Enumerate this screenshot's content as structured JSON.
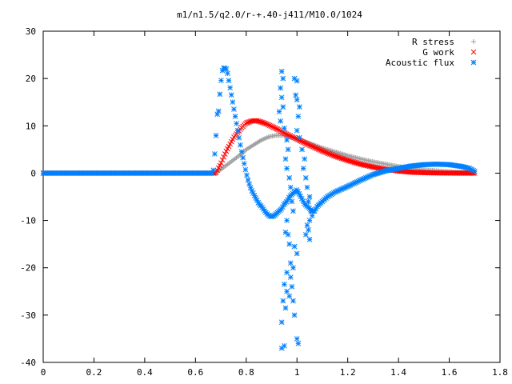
{
  "chart_data": {
    "type": "scatter",
    "title": "m1/n1.5/q2.0/r-+.40-j411/M10.0/1024",
    "xlabel": "",
    "ylabel": "",
    "xlim": [
      0,
      1.8
    ],
    "ylim": [
      -40,
      30
    ],
    "grid": false,
    "legend_position": "top-right",
    "x_ticks": [
      "0",
      "0.2",
      "0.4",
      "0.6",
      "0.8",
      "1",
      "1.2",
      "1.4",
      "1.6",
      "1.8"
    ],
    "y_ticks": [
      "30",
      "20",
      "10",
      "0",
      "-10",
      "-20",
      "-30",
      "-40"
    ],
    "series": [
      {
        "name": "R stress",
        "marker": "+",
        "color": "#a0a0a0",
        "points": [
          [
            0,
            0
          ],
          [
            0.68,
            0
          ],
          [
            0.7,
            0.8
          ],
          [
            0.72,
            1.6
          ],
          [
            0.75,
            2.8
          ],
          [
            0.78,
            4.0
          ],
          [
            0.8,
            5.0
          ],
          [
            0.83,
            6.0
          ],
          [
            0.86,
            7.0
          ],
          [
            0.89,
            7.7
          ],
          [
            0.92,
            8.0
          ],
          [
            0.95,
            8.0
          ],
          [
            0.98,
            7.6
          ],
          [
            1.0,
            7.2
          ],
          [
            1.05,
            6.3
          ],
          [
            1.1,
            5.3
          ],
          [
            1.15,
            4.5
          ],
          [
            1.2,
            3.7
          ],
          [
            1.25,
            3.0
          ],
          [
            1.3,
            2.4
          ],
          [
            1.35,
            1.9
          ],
          [
            1.4,
            1.4
          ],
          [
            1.45,
            1.0
          ],
          [
            1.5,
            0.7
          ],
          [
            1.55,
            0.5
          ],
          [
            1.6,
            0.3
          ],
          [
            1.65,
            0.15
          ],
          [
            1.7,
            0
          ]
        ]
      },
      {
        "name": "G work",
        "marker": "x",
        "color": "#ff0000",
        "points": [
          [
            0,
            0
          ],
          [
            0.68,
            0
          ],
          [
            0.7,
            2.0
          ],
          [
            0.72,
            4.5
          ],
          [
            0.75,
            7.5
          ],
          [
            0.78,
            9.5
          ],
          [
            0.8,
            10.6
          ],
          [
            0.82,
            11.0
          ],
          [
            0.84,
            11.1
          ],
          [
            0.86,
            10.8
          ],
          [
            0.88,
            10.4
          ],
          [
            0.9,
            9.9
          ],
          [
            0.93,
            9.1
          ],
          [
            0.96,
            8.2
          ],
          [
            1.0,
            7.2
          ],
          [
            1.05,
            5.9
          ],
          [
            1.1,
            4.7
          ],
          [
            1.15,
            3.6
          ],
          [
            1.2,
            2.7
          ],
          [
            1.25,
            1.9
          ],
          [
            1.3,
            1.3
          ],
          [
            1.35,
            0.8
          ],
          [
            1.4,
            0.45
          ],
          [
            1.45,
            0.2
          ],
          [
            1.5,
            0.1
          ],
          [
            1.55,
            0.05
          ],
          [
            1.6,
            0.02
          ],
          [
            1.7,
            0
          ]
        ]
      },
      {
        "name": "Acoustic flux",
        "marker": "*",
        "color": "#0080ff",
        "points": [
          [
            0,
            0
          ],
          [
            0.67,
            0
          ],
          [
            0.68,
            6.8
          ],
          [
            0.685,
            12.5
          ],
          [
            0.69,
            12.3
          ],
          [
            0.695,
            16
          ],
          [
            0.7,
            19
          ],
          [
            0.705,
            21.5
          ],
          [
            0.71,
            22.2
          ],
          [
            0.72,
            22.2
          ],
          [
            0.725,
            21.5
          ],
          [
            0.73,
            20
          ],
          [
            0.74,
            17
          ],
          [
            0.75,
            14
          ],
          [
            0.76,
            11
          ],
          [
            0.77,
            8
          ],
          [
            0.78,
            5
          ],
          [
            0.79,
            2.5
          ],
          [
            0.8,
            0
          ],
          [
            0.81,
            -2
          ],
          [
            0.82,
            -3.5
          ],
          [
            0.83,
            -4.5
          ],
          [
            0.84,
            -5.5
          ],
          [
            0.85,
            -6.5
          ],
          [
            0.86,
            -7
          ],
          [
            0.87,
            -7.8
          ],
          [
            0.88,
            -8.5
          ],
          [
            0.89,
            -9
          ],
          [
            0.9,
            -9.2
          ],
          [
            0.91,
            -9
          ],
          [
            0.92,
            -8.5
          ],
          [
            0.93,
            -8
          ],
          [
            0.94,
            -7.5
          ],
          [
            0.95,
            -6.5
          ],
          [
            0.96,
            -6
          ],
          [
            0.97,
            -5
          ],
          [
            0.98,
            -4.5
          ],
          [
            0.99,
            -4
          ],
          [
            1.0,
            -3.5
          ],
          [
            1.01,
            -4.5
          ],
          [
            1.02,
            -5.5
          ],
          [
            1.03,
            -6.5
          ],
          [
            1.04,
            -7
          ],
          [
            1.05,
            -7.5
          ],
          [
            1.06,
            -8
          ],
          [
            1.07,
            -8
          ],
          [
            1.08,
            -7
          ],
          [
            1.09,
            -6.5
          ],
          [
            1.1,
            -6
          ],
          [
            1.12,
            -5
          ],
          [
            1.15,
            -4
          ],
          [
            1.2,
            -2.8
          ],
          [
            1.25,
            -1.5
          ],
          [
            1.3,
            -0.3
          ],
          [
            1.35,
            0.5
          ],
          [
            1.4,
            1.0
          ],
          [
            1.45,
            1.5
          ],
          [
            1.5,
            1.8
          ],
          [
            1.55,
            1.9
          ],
          [
            1.6,
            1.8
          ],
          [
            1.65,
            1.4
          ],
          [
            1.68,
            1.0
          ],
          [
            1.7,
            0.4
          ],
          [
            0.94,
            21.5
          ],
          [
            0.945,
            20
          ],
          [
            0.935,
            18
          ],
          [
            0.94,
            16
          ],
          [
            0.945,
            14
          ],
          [
            0.93,
            13
          ],
          [
            0.935,
            11
          ],
          [
            0.95,
            9.5
          ],
          [
            0.96,
            7
          ],
          [
            0.965,
            5
          ],
          [
            0.955,
            3
          ],
          [
            0.96,
            1
          ],
          [
            0.97,
            -1
          ],
          [
            0.975,
            -3
          ],
          [
            0.98,
            -6
          ],
          [
            0.985,
            -8
          ],
          [
            0.96,
            -10
          ],
          [
            0.955,
            -12.5
          ],
          [
            0.965,
            -13
          ],
          [
            0.97,
            -15
          ],
          [
            0.99,
            -15.5
          ],
          [
            1.0,
            -17
          ],
          [
            0.975,
            -19
          ],
          [
            0.985,
            -20
          ],
          [
            0.96,
            -21
          ],
          [
            0.975,
            -22
          ],
          [
            0.95,
            -23.5
          ],
          [
            0.98,
            -24
          ],
          [
            0.96,
            -25
          ],
          [
            0.97,
            -26
          ],
          [
            0.945,
            -27
          ],
          [
            0.955,
            -28.5
          ],
          [
            0.99,
            -30
          ],
          [
            0.94,
            -31.5
          ],
          [
            0.985,
            -27
          ],
          [
            1.0,
            -35
          ],
          [
            1.005,
            -36
          ],
          [
            0.95,
            -36.5
          ],
          [
            0.94,
            -37
          ],
          [
            0.99,
            20
          ],
          [
            1.0,
            19.5
          ],
          [
            0.995,
            16.5
          ],
          [
            1.0,
            15.5
          ],
          [
            1.01,
            14
          ],
          [
            1.005,
            12
          ],
          [
            1.0,
            9
          ],
          [
            1.01,
            7.5
          ],
          [
            1.02,
            5
          ],
          [
            1.03,
            3
          ],
          [
            1.025,
            1
          ],
          [
            1.035,
            -1
          ],
          [
            1.04,
            -3
          ],
          [
            1.05,
            -5
          ],
          [
            1.045,
            -6
          ],
          [
            1.055,
            -8
          ],
          [
            1.06,
            -9
          ],
          [
            1.05,
            -10
          ],
          [
            1.04,
            -11
          ],
          [
            1.045,
            -12
          ],
          [
            1.035,
            -13
          ],
          [
            1.05,
            -14
          ]
        ]
      }
    ]
  }
}
